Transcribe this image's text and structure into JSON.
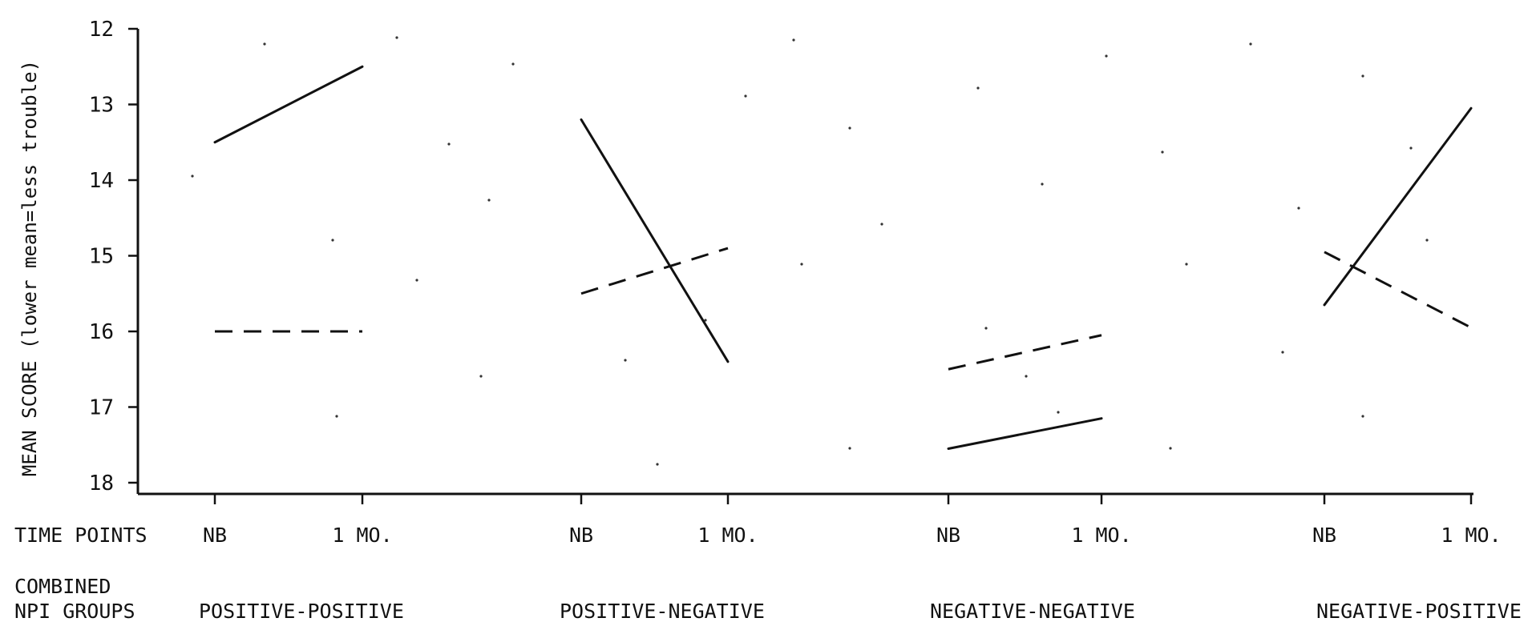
{
  "chart_data": {
    "type": "line",
    "ylabel": "MEAN SCORE (lower mean=less trouble)",
    "ylim": [
      12,
      18
    ],
    "y_inverted": true,
    "yticks": [
      "12",
      "13",
      "14",
      "15",
      "16",
      "17",
      "18"
    ],
    "time_points_label": "TIME POINTS",
    "groups_label_line1": "COMBINED",
    "groups_label_line2": "NPI GROUPS",
    "time_points": [
      "NB",
      "1 MO."
    ],
    "groups": [
      {
        "name": "POSITIVE-POSITIVE",
        "solid": [
          13.5,
          12.5
        ],
        "dashed": [
          16.0,
          16.0
        ]
      },
      {
        "name": "POSITIVE-NEGATIVE",
        "solid": [
          13.2,
          16.4
        ],
        "dashed": [
          15.5,
          14.9
        ]
      },
      {
        "name": "NEGATIVE-NEGATIVE",
        "solid": [
          17.55,
          17.15
        ],
        "dashed": [
          16.5,
          16.05
        ]
      },
      {
        "name": "NEGATIVE-POSITIVE",
        "solid": [
          15.65,
          13.05
        ],
        "dashed": [
          14.95,
          15.95
        ]
      }
    ],
    "grid": false
  },
  "colors": {
    "ink": "#111111",
    "background": "#ffffff"
  }
}
